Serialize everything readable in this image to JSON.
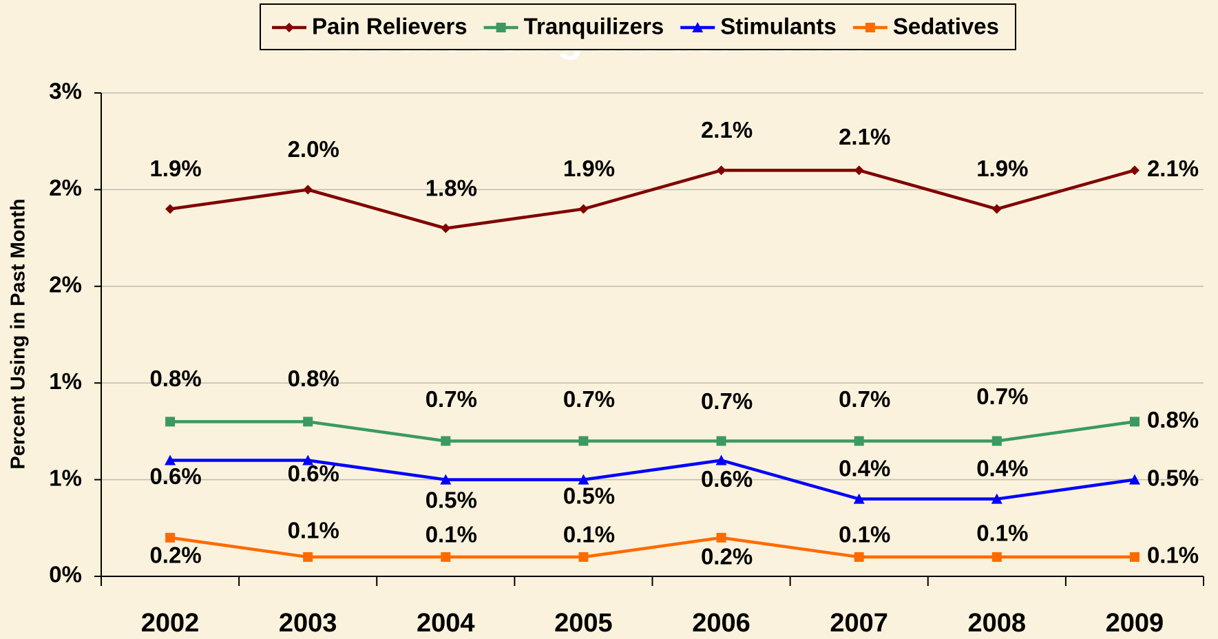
{
  "chart_data": {
    "type": "line",
    "title": "Percent Using in Past Month",
    "y_label": "Percent Using in Past Month",
    "categories": [
      "2002",
      "2003",
      "2004",
      "2005",
      "2006",
      "2007",
      "2008",
      "2009"
    ],
    "series": [
      {
        "name": "Pain Relievers",
        "color": "#800000",
        "marker": "diamond",
        "values": [
          1.9,
          2.0,
          1.8,
          1.9,
          2.1,
          2.1,
          1.9,
          2.1
        ],
        "value_labels": [
          "1.9%",
          "2.0%",
          "1.8%",
          "1.9%",
          "2.1%",
          "2.1%",
          "1.9%",
          "2.1%"
        ]
      },
      {
        "name": "Tranquilizers",
        "color": "#3a9a60",
        "marker": "square",
        "values": [
          0.8,
          0.8,
          0.7,
          0.7,
          0.7,
          0.7,
          0.7,
          0.8
        ],
        "value_labels": [
          "0.8%",
          "0.8%",
          "0.7%",
          "0.7%",
          "0.7%",
          "0.7%",
          "0.7%",
          "0.8%"
        ]
      },
      {
        "name": "Stimulants",
        "color": "#0000ff",
        "marker": "triangle",
        "values": [
          0.6,
          0.6,
          0.5,
          0.5,
          0.6,
          0.4,
          0.4,
          0.5
        ],
        "value_labels": [
          "0.6%",
          "0.6%",
          "0.5%",
          "0.5%",
          "0.6%",
          "0.4%",
          "0.4%",
          "0.5%"
        ]
      },
      {
        "name": "Sedatives",
        "color": "#ff6a00",
        "marker": "square",
        "values": [
          0.2,
          0.1,
          0.1,
          0.1,
          0.2,
          0.1,
          0.1,
          0.1
        ],
        "value_labels": [
          "0.2%",
          "0.1%",
          "0.1%",
          "0.1%",
          "0.2%",
          "0.1%",
          "0.1%",
          "0.1%"
        ]
      }
    ],
    "ylim": [
      0,
      2.5
    ],
    "yticks": [
      {
        "value": 0,
        "label": "0%"
      },
      {
        "value": 0.5,
        "label": "1%"
      },
      {
        "value": 1.0,
        "label": "1%"
      },
      {
        "value": 1.5,
        "label": "2%"
      },
      {
        "value": 2.0,
        "label": "2%"
      },
      {
        "value": 2.5,
        "label": "3%"
      }
    ],
    "grid": true,
    "legend": "top"
  }
}
